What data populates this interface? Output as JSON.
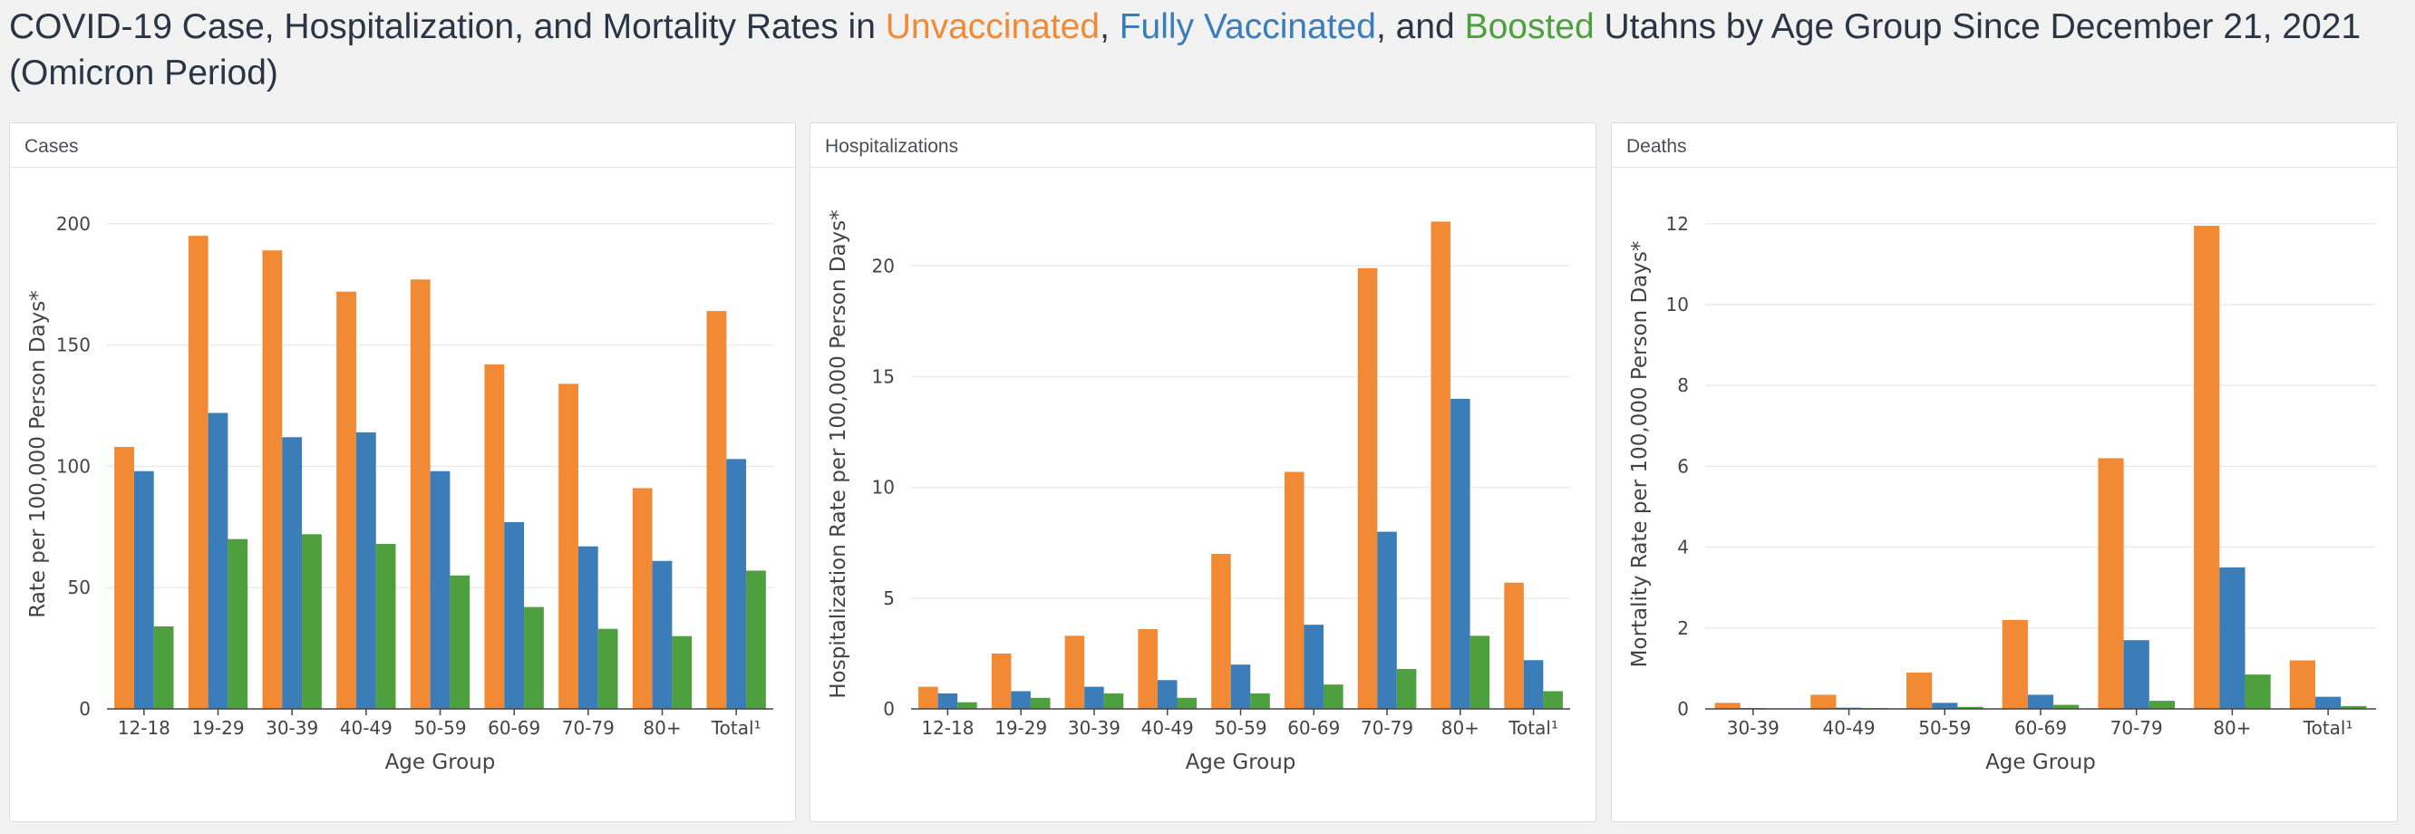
{
  "page": {
    "title_part1": "COVID-19 Case, Hospitalization, and Mortality Rates in ",
    "title_unvax": "Unvaccinated",
    "title_sep1": ", ",
    "title_fully": "Fully Vaccinated",
    "title_sep2": ", and ",
    "title_boost": "Boosted",
    "title_part2": " Utahns by Age Group Since December 21, 2021 (Omicron Period)"
  },
  "colors": {
    "unvaccinated": "#f28a35",
    "fully_vaccinated": "#3a7db8",
    "boosted": "#4e9f3d"
  },
  "chart_data": [
    {
      "panel_title": "Cases",
      "type": "bar",
      "categories": [
        "12-18",
        "19-29",
        "30-39",
        "40-49",
        "50-59",
        "60-69",
        "70-79",
        "80+",
        "Total¹"
      ],
      "series": [
        {
          "name": "Unvaccinated",
          "values": [
            108,
            195,
            189,
            172,
            177,
            142,
            134,
            91,
            164
          ]
        },
        {
          "name": "Fully Vaccinated",
          "values": [
            98,
            122,
            112,
            114,
            98,
            77,
            67,
            61,
            103
          ]
        },
        {
          "name": "Boosted",
          "values": [
            34,
            70,
            72,
            68,
            55,
            42,
            33,
            30,
            57
          ]
        }
      ],
      "xlabel": "Age Group",
      "ylabel": "Rate per 100,000 Person Days*",
      "ylim": [
        0,
        210
      ],
      "yticks": [
        0,
        50,
        100,
        150,
        200
      ],
      "grid": true
    },
    {
      "panel_title": "Hospitalizations",
      "type": "bar",
      "categories": [
        "12-18",
        "19-29",
        "30-39",
        "40-49",
        "50-59",
        "60-69",
        "70-79",
        "80+",
        "Total¹"
      ],
      "series": [
        {
          "name": "Unvaccinated",
          "values": [
            1.0,
            2.5,
            3.3,
            3.6,
            7.0,
            10.7,
            19.9,
            22.0,
            5.7
          ]
        },
        {
          "name": "Fully Vaccinated",
          "values": [
            0.7,
            0.8,
            1.0,
            1.3,
            2.0,
            3.8,
            8.0,
            14.0,
            2.2
          ]
        },
        {
          "name": "Boosted",
          "values": [
            0.3,
            0.5,
            0.7,
            0.5,
            0.7,
            1.1,
            1.8,
            3.3,
            0.8
          ]
        }
      ],
      "xlabel": "Age Group",
      "ylabel": "Hospitalization Rate per 100,000 Person Days*",
      "ylim": [
        0,
        23
      ],
      "yticks": [
        0,
        5,
        10,
        15,
        20
      ],
      "grid": true
    },
    {
      "panel_title": "Deaths",
      "type": "bar",
      "categories": [
        "30-39",
        "40-49",
        "50-59",
        "60-69",
        "70-79",
        "80+",
        "Total¹"
      ],
      "series": [
        {
          "name": "Unvaccinated",
          "values": [
            0.15,
            0.35,
            0.9,
            2.2,
            6.2,
            11.95,
            1.2
          ]
        },
        {
          "name": "Fully Vaccinated",
          "values": [
            0.02,
            0.03,
            0.15,
            0.35,
            1.7,
            3.5,
            0.3
          ]
        },
        {
          "name": "Boosted",
          "values": [
            0.01,
            0.02,
            0.05,
            0.1,
            0.2,
            0.85,
            0.07
          ]
        }
      ],
      "xlabel": "Age Group",
      "ylabel": "Mortality Rate per 100,000 Person Days*",
      "ylim": [
        0,
        12.6
      ],
      "yticks": [
        0,
        2,
        4,
        6,
        8,
        10,
        12
      ],
      "grid": true
    }
  ]
}
